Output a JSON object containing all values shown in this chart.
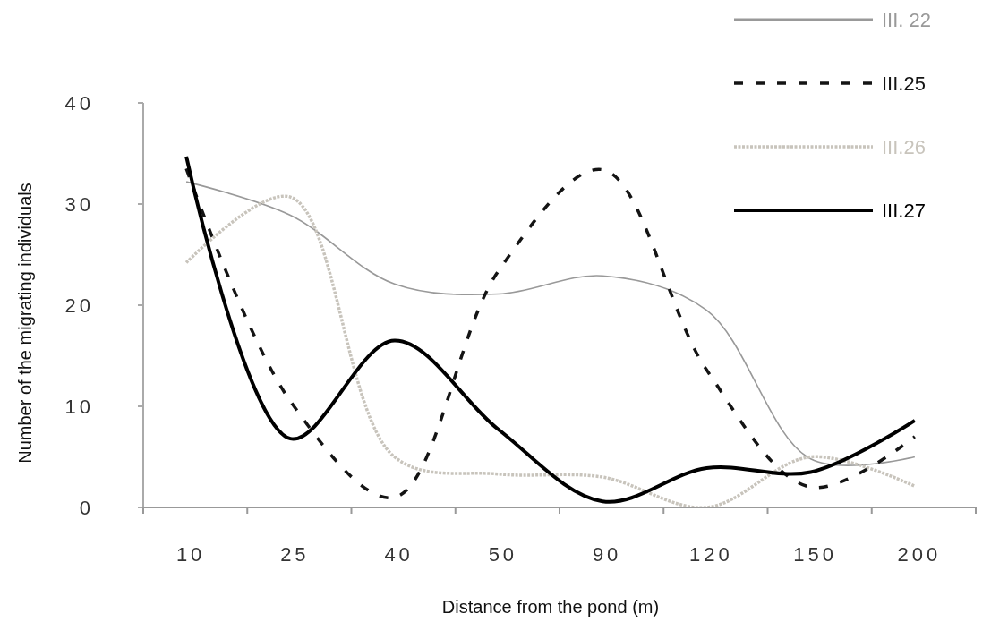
{
  "chart_data": {
    "type": "line",
    "xlabel": "Distance from the pond (m)",
    "ylabel": "Number of the migrating individuals",
    "categories": [
      "10",
      "25",
      "40",
      "50",
      "90",
      "120",
      "150",
      "200"
    ],
    "series": [
      {
        "name": "III. 22",
        "color": "#999999",
        "line_style": "solid",
        "values": [
          32.2,
          28.9,
          22.1,
          21.1,
          22.9,
          19.5,
          4.8,
          5
        ]
      },
      {
        "name": "III.25",
        "color": "#141414",
        "line_style": "dashed",
        "values": [
          33.5,
          10.5,
          1,
          23.4,
          33.4,
          13.6,
          2,
          7
        ]
      },
      {
        "name": "III.26",
        "color": "#c8c4bc",
        "line_style": "dotted",
        "values": [
          24.2,
          30.7,
          5,
          3.3,
          3,
          0,
          5,
          2.1
        ]
      },
      {
        "name": "III.27",
        "color": "#000000",
        "line_style": "solid",
        "values": [
          34.7,
          6.8,
          16.5,
          7.7,
          0.6,
          3.9,
          3.5,
          8.6
        ]
      }
    ],
    "ylim": [
      0,
      40
    ],
    "yticks": [
      0,
      10,
      20,
      30,
      40
    ],
    "legend": "top right",
    "grid": false
  }
}
